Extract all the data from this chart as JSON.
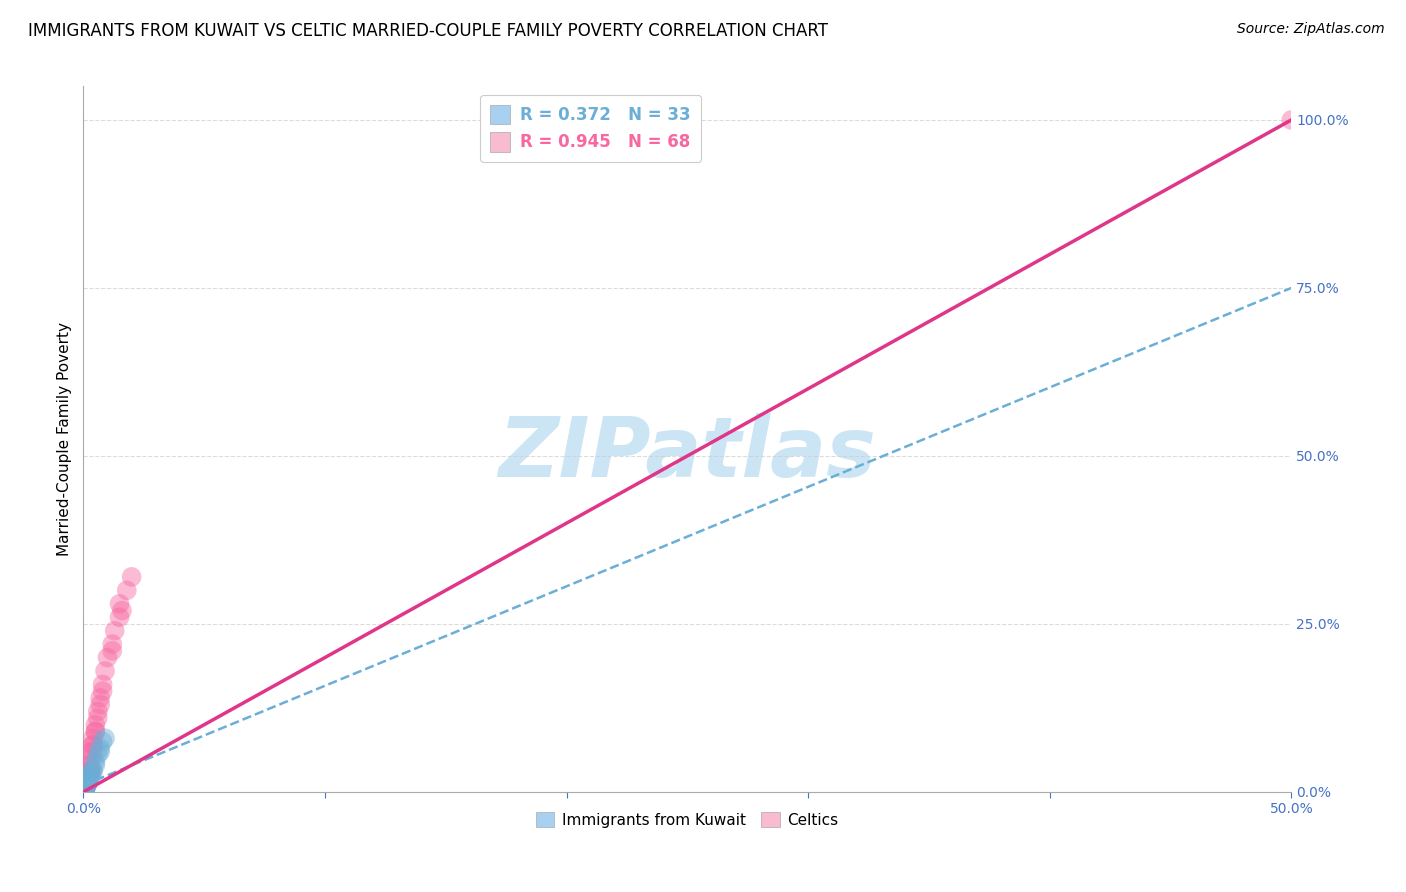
{
  "title": "IMMIGRANTS FROM KUWAIT VS CELTIC MARRIED-COUPLE FAMILY POVERTY CORRELATION CHART",
  "source": "Source: ZipAtlas.com",
  "ylabel": "Married-Couple Family Poverty",
  "ylabel_right_ticks": [
    "0.0%",
    "25.0%",
    "50.0%",
    "75.0%",
    "100.0%"
  ],
  "ylabel_right_tick_vals": [
    0.0,
    0.25,
    0.5,
    0.75,
    1.0
  ],
  "xmin": 0.0,
  "xmax": 0.5,
  "ymin": 0.0,
  "ymax": 1.05,
  "legend_box_colors": [
    "#a8d0f0",
    "#f9bbd0"
  ],
  "watermark": "ZIPatlas",
  "blue_scatter": {
    "x": [
      0.0005,
      0.001,
      0.0015,
      0.001,
      0.002,
      0.0005,
      0.003,
      0.001,
      0.002,
      0.001,
      0.0008,
      0.002,
      0.001,
      0.003,
      0.0005,
      0.002,
      0.001,
      0.003,
      0.002,
      0.0008,
      0.004,
      0.002,
      0.001,
      0.0005,
      0.002,
      0.005,
      0.004,
      0.006,
      0.007,
      0.005,
      0.008,
      0.007,
      0.009
    ],
    "y": [
      0.005,
      0.01,
      0.02,
      0.008,
      0.015,
      0.003,
      0.025,
      0.012,
      0.02,
      0.007,
      0.005,
      0.018,
      0.01,
      0.022,
      0.003,
      0.014,
      0.008,
      0.028,
      0.016,
      0.005,
      0.03,
      0.015,
      0.008,
      0.003,
      0.013,
      0.04,
      0.032,
      0.055,
      0.065,
      0.045,
      0.075,
      0.06,
      0.08
    ]
  },
  "pink_scatter": {
    "x": [
      0.0005,
      0.001,
      0.001,
      0.0008,
      0.002,
      0.001,
      0.003,
      0.001,
      0.002,
      0.0008,
      0.001,
      0.002,
      0.001,
      0.002,
      0.0005,
      0.003,
      0.001,
      0.002,
      0.003,
      0.0008,
      0.002,
      0.001,
      0.001,
      0.0005,
      0.002,
      0.001,
      0.0015,
      0.002,
      0.003,
      0.001,
      0.002,
      0.0008,
      0.001,
      0.002,
      0.001,
      0.003,
      0.002,
      0.001,
      0.002,
      0.0008,
      0.003,
      0.004,
      0.005,
      0.006,
      0.007,
      0.008,
      0.006,
      0.005,
      0.007,
      0.004,
      0.009,
      0.008,
      0.01,
      0.005,
      0.004,
      0.003,
      0.002,
      0.012,
      0.015,
      0.012,
      0.015,
      0.018,
      0.02,
      0.013,
      0.016,
      0.004,
      0.003,
      0.5
    ],
    "y": [
      0.005,
      0.01,
      0.015,
      0.008,
      0.02,
      0.007,
      0.025,
      0.01,
      0.018,
      0.005,
      0.008,
      0.016,
      0.008,
      0.02,
      0.003,
      0.03,
      0.007,
      0.015,
      0.028,
      0.005,
      0.022,
      0.01,
      0.007,
      0.003,
      0.015,
      0.008,
      0.012,
      0.018,
      0.03,
      0.006,
      0.02,
      0.005,
      0.01,
      0.022,
      0.008,
      0.032,
      0.018,
      0.006,
      0.02,
      0.004,
      0.06,
      0.08,
      0.1,
      0.12,
      0.14,
      0.16,
      0.11,
      0.09,
      0.13,
      0.07,
      0.18,
      0.15,
      0.2,
      0.09,
      0.07,
      0.05,
      0.04,
      0.22,
      0.26,
      0.21,
      0.28,
      0.3,
      0.32,
      0.24,
      0.27,
      0.06,
      0.04,
      1.0
    ]
  },
  "blue_line": {
    "x0": 0.0,
    "y0": 0.01,
    "x1": 0.5,
    "y1": 0.75,
    "color": "#6baed6",
    "linestyle": "--",
    "linewidth": 1.8
  },
  "pink_line": {
    "x0": 0.0,
    "y0": 0.0,
    "x1": 0.5,
    "y1": 1.0,
    "color": "#e0368a",
    "linestyle": "-",
    "linewidth": 2.5
  },
  "grid_color": "#cccccc",
  "grid_alpha": 0.7,
  "scatter_alpha": 0.45,
  "scatter_size": 200,
  "blue_color": "#6baed6",
  "pink_color": "#f768a1",
  "background_color": "#ffffff",
  "title_fontsize": 12,
  "axis_label_fontsize": 11,
  "tick_fontsize": 10,
  "source_fontsize": 10,
  "watermark_fontsize": 60,
  "watermark_color": "#cce5f5",
  "legend_label1": "R = 0.372   N = 33",
  "legend_label2": "R = 0.945   N = 68",
  "legend_label3": "Immigrants from Kuwait",
  "legend_label4": "Celtics"
}
